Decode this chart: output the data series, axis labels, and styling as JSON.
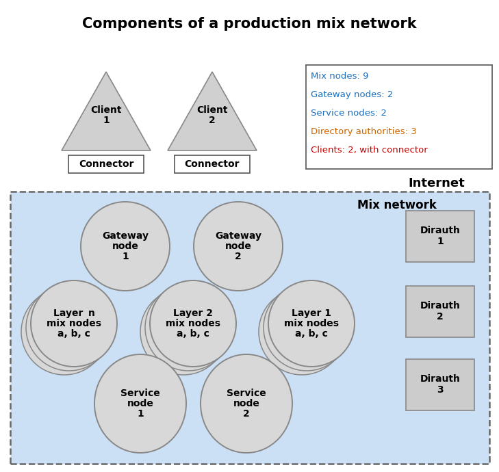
{
  "title": "Components of a production mix network",
  "legend_lines": [
    {
      "text": "Mix nodes: 9",
      "color": "#1a6ebd"
    },
    {
      "text": "Gateway nodes: 2",
      "color": "#1a6ebd"
    },
    {
      "text": "Service nodes: 2",
      "color": "#1a6ebd"
    },
    {
      "text": "Directory authorities: 3",
      "color": "#cc6600"
    },
    {
      "text": "Clients: 2, with connector",
      "color": "#cc0000"
    }
  ],
  "internet_label": "Internet",
  "mixnet_label": "Mix network",
  "bg_box_color": "#cce0f5",
  "circle_fill": "#d8d8d8",
  "circle_edge": "#888888",
  "rect_fill": "#cccccc",
  "rect_edge": "#888888",
  "triangle_fill": "#d0d0d0",
  "triangle_edge": "#888888",
  "connector_fill": "#ffffff",
  "connector_edge": "#555555",
  "font_bold": true
}
